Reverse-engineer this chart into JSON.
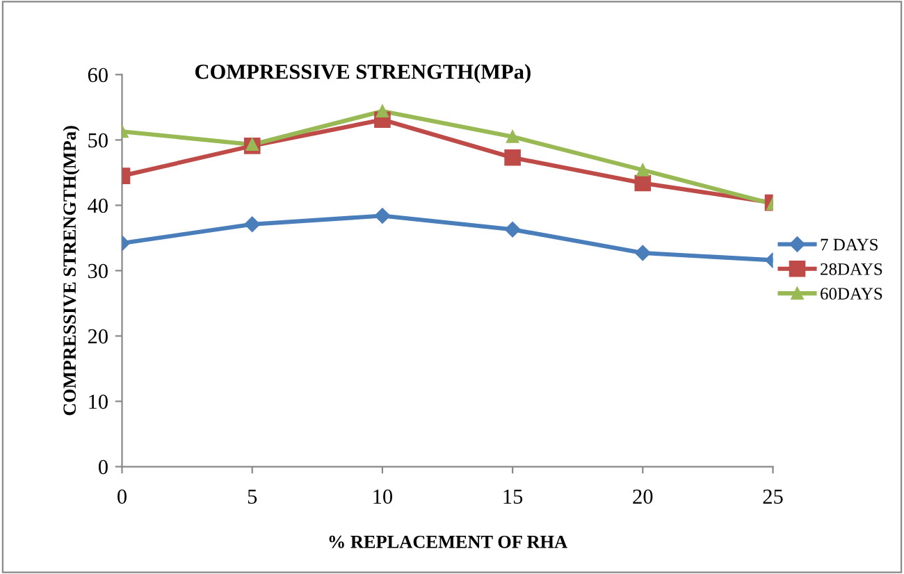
{
  "chart_data": {
    "type": "line",
    "title": "COMPRESSIVE STRENGTH(MPa)",
    "xlabel": "% REPLACEMENT OF RHA",
    "ylabel": "COMPRESSIVE STRENGTH(MPa)",
    "categories": [
      "0",
      "5",
      "10",
      "15",
      "20",
      "25"
    ],
    "series": [
      {
        "name": "7 DAYS",
        "color": "#4a7ebb",
        "marker": "diamond",
        "values": [
          34.2,
          37.1,
          38.4,
          36.3,
          32.7,
          31.6
        ]
      },
      {
        "name": "28DAYS",
        "color": "#be4b48",
        "marker": "square",
        "values": [
          44.5,
          49.1,
          53.1,
          47.3,
          43.4,
          40.4
        ]
      },
      {
        "name": "60DAYS",
        "color": "#98b954",
        "marker": "triangle",
        "values": [
          51.3,
          49.3,
          54.4,
          50.5,
          45.4,
          40.2
        ]
      }
    ],
    "ylim": [
      0,
      60
    ],
    "yticks": [
      0,
      10,
      20,
      30,
      40,
      50,
      60
    ],
    "grid": false,
    "legend": "right",
    "line_style": "solid"
  }
}
